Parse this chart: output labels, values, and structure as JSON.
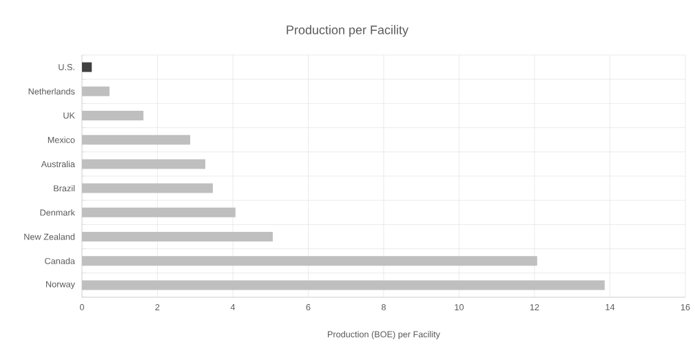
{
  "chart_data": {
    "type": "bar",
    "orientation": "horizontal",
    "title": "Production per Facility",
    "xlabel": "Production (BOE) per Facility",
    "categories": [
      "U.S.",
      "Netherlands",
      "UK",
      "Mexico",
      "Australia",
      "Brazil",
      "Denmark",
      "New Zealand",
      "Canada",
      "Norway"
    ],
    "values": [
      0.26,
      0.73,
      1.63,
      2.87,
      3.27,
      3.47,
      4.07,
      5.06,
      12.07,
      13.86
    ],
    "colors": [
      "#404040",
      "#bfbfbf",
      "#bfbfbf",
      "#bfbfbf",
      "#bfbfbf",
      "#bfbfbf",
      "#bfbfbf",
      "#bfbfbf",
      "#bfbfbf",
      "#bfbfbf"
    ],
    "xlim": [
      0,
      16
    ],
    "xticks": [
      0,
      2,
      4,
      6,
      8,
      10,
      12,
      14,
      16
    ],
    "grid": true
  }
}
